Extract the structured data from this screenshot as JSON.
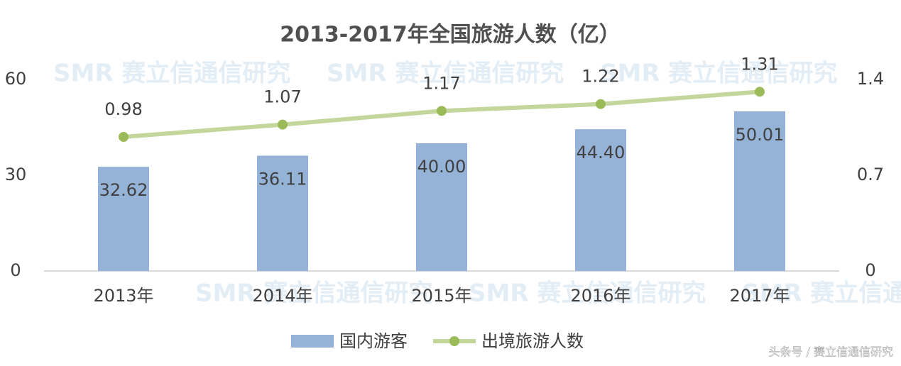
{
  "chart_data": {
    "type": "bar",
    "title": "2013-2017年全国旅游人数（亿）",
    "categories": [
      "2013年",
      "2014年",
      "2015年",
      "2016年",
      "2017年"
    ],
    "series": [
      {
        "name": "国内游客",
        "type": "bar",
        "color": "#95b3d7",
        "values": [
          32.62,
          36.11,
          40,
          44.4,
          50.01
        ],
        "value_labels": [
          "32.62",
          "36.11",
          "40.00",
          "44.40",
          "50.01"
        ]
      },
      {
        "name": "出境旅游人数",
        "type": "line",
        "axis": "y2",
        "color": "#9bbb59",
        "line_color": "#c3d69b",
        "values": [
          0.98,
          1.07,
          1.17,
          1.22,
          1.31
        ]
      }
    ],
    "ylim": [
      0,
      60
    ],
    "yticks": [
      0,
      30,
      60
    ],
    "y2lim": [
      0,
      1.4
    ],
    "y2ticks": [
      0,
      0.7,
      1.4
    ],
    "legend": "bottom",
    "watermark": "SMR 赛立信通信研究",
    "footer": "头条号 / 赛立信通信研究"
  }
}
